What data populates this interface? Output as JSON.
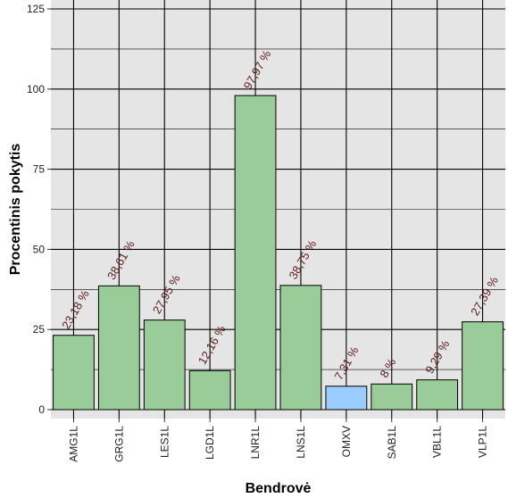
{
  "chart_data": {
    "type": "bar",
    "title": "",
    "xlabel": "Bendrovė",
    "ylabel": "Procentinis pokytis",
    "categories": [
      "AMG1L",
      "GRG1L",
      "LES1L",
      "LGD1L",
      "LNR1L",
      "LNS1L",
      "OMXV",
      "SAB1L",
      "VBL1L",
      "VLP1L"
    ],
    "values": [
      23.18,
      38.61,
      27.95,
      12.16,
      97.97,
      38.75,
      7.31,
      8,
      9.29,
      27.39
    ],
    "data_labels": [
      "23,18 %",
      "38,61 %",
      "27,95 %",
      "12,16 %",
      "97,97 %",
      "38,75 %",
      "7,31 %",
      "8 %",
      "9,29 %",
      "27,39 %"
    ],
    "bar_colors": [
      "#99cc99",
      "#99cc99",
      "#99cc99",
      "#99cc99",
      "#99cc99",
      "#99cc99",
      "#99ccff",
      "#99cc99",
      "#99cc99",
      "#99cc99"
    ],
    "ylim": [
      0,
      125
    ],
    "yticks": [
      0,
      25,
      50,
      75,
      100,
      125
    ],
    "grid": true,
    "legend": "none",
    "panel_background": "#e5e5e5",
    "grid_color": "#000000",
    "bar_outline_color": "#000000"
  }
}
